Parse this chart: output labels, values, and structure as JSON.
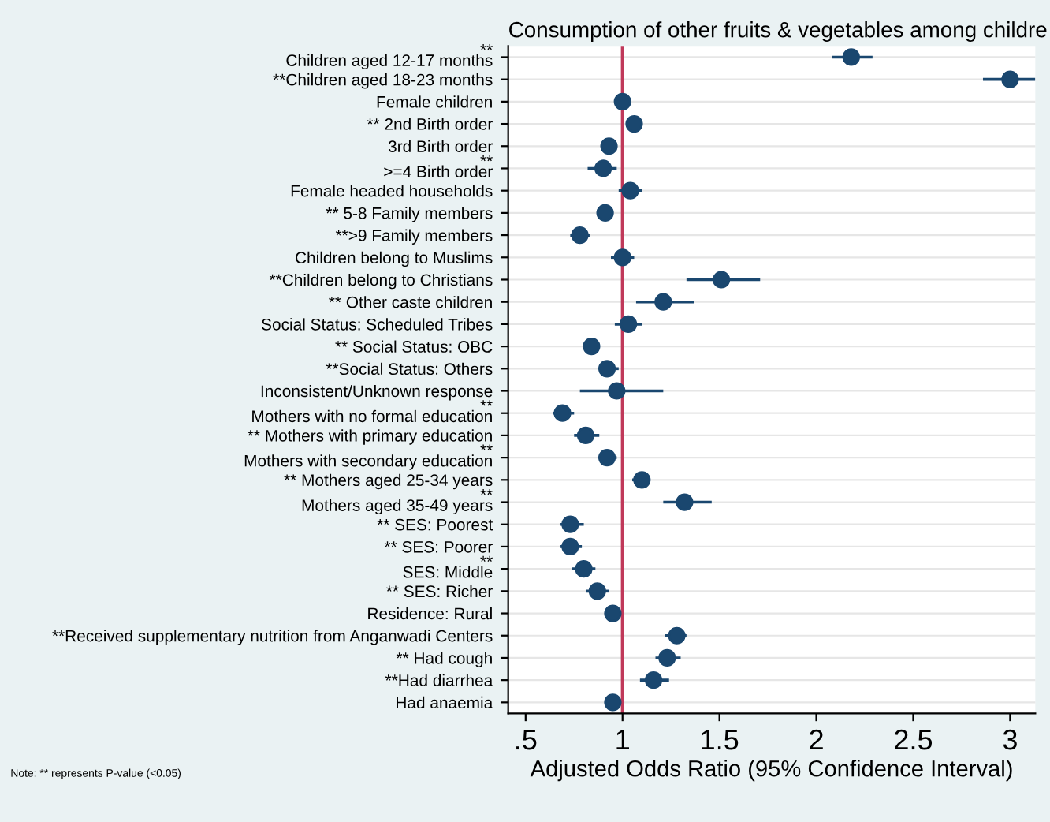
{
  "chart_data": {
    "type": "scatter",
    "orientation": "horizontal",
    "title": "Consumption of other fruits & vegetables among childre",
    "xlabel": "Adjusted Odds Ratio (95% Confidence Interval)",
    "categories": [
      "**\nChildren aged 12-17 months",
      "**Children aged 18-23 months",
      "Female children",
      "** 2nd Birth order",
      "3rd Birth order",
      "**\n>=4 Birth order",
      "Female headed households",
      "** 5-8 Family members",
      "**>9 Family members",
      "Children belong to Muslims",
      "**Children belong to Christians",
      "** Other caste children",
      "Social Status: Scheduled Tribes",
      "** Social Status: OBC",
      "**Social Status: Others",
      "Inconsistent/Unknown response",
      "**\nMothers with no formal education",
      "** Mothers with primary education",
      "**\nMothers with secondary education",
      "** Mothers aged 25-34 years",
      "**\nMothers aged 35-49 years",
      "** SES: Poorest",
      "** SES: Poorer",
      "**\nSES: Middle",
      "** SES: Richer",
      "Residence: Rural",
      "**Received supplementary nutrition from Anganwadi Centers",
      "** Had cough",
      "**Had diarrhea",
      "Had anaemia"
    ],
    "series": [
      {
        "color": "#1a476f",
        "values": [
          2.18,
          3.0,
          1.0,
          1.06,
          0.93,
          0.9,
          1.04,
          0.91,
          0.78,
          1.0,
          1.51,
          1.21,
          1.03,
          0.84,
          0.92,
          0.97,
          0.69,
          0.81,
          0.92,
          1.1,
          1.32,
          0.73,
          0.73,
          0.8,
          0.87,
          0.95,
          1.28,
          1.23,
          1.16,
          0.95
        ],
        "errors": [
          [
            2.08,
            2.29
          ],
          [
            2.86,
            3.13
          ],
          [
            0.98,
            1.02
          ],
          [
            1.03,
            1.09
          ],
          [
            0.89,
            0.97
          ],
          [
            0.82,
            0.97
          ],
          [
            0.98,
            1.1
          ],
          [
            0.89,
            0.94
          ],
          [
            0.73,
            0.83
          ],
          [
            0.94,
            1.06
          ],
          [
            1.33,
            1.71
          ],
          [
            1.07,
            1.37
          ],
          [
            0.96,
            1.1
          ],
          [
            0.8,
            0.87
          ],
          [
            0.88,
            0.98
          ],
          [
            0.78,
            1.21
          ],
          [
            0.64,
            0.75
          ],
          [
            0.75,
            0.88
          ],
          [
            0.88,
            0.97
          ],
          [
            1.05,
            1.14
          ],
          [
            1.21,
            1.46
          ],
          [
            0.68,
            0.8
          ],
          [
            0.68,
            0.79
          ],
          [
            0.74,
            0.86
          ],
          [
            0.81,
            0.93
          ],
          [
            0.91,
            0.99
          ],
          [
            1.22,
            1.33
          ],
          [
            1.17,
            1.3
          ],
          [
            1.09,
            1.24
          ],
          [
            0.92,
            0.98
          ]
        ]
      }
    ],
    "xlim": [
      0.41,
      3.13
    ],
    "xticks": [
      {
        "value": 0.5,
        "label": ".5"
      },
      1,
      1.5,
      2,
      2.5,
      3
    ],
    "marker": "circle",
    "grid": "y",
    "ref_lines": [
      {
        "axis": "x",
        "value": 1,
        "color": "#c0395a"
      }
    ],
    "annotations": [
      "Note: ** represents P-value (<0.05)"
    ]
  }
}
